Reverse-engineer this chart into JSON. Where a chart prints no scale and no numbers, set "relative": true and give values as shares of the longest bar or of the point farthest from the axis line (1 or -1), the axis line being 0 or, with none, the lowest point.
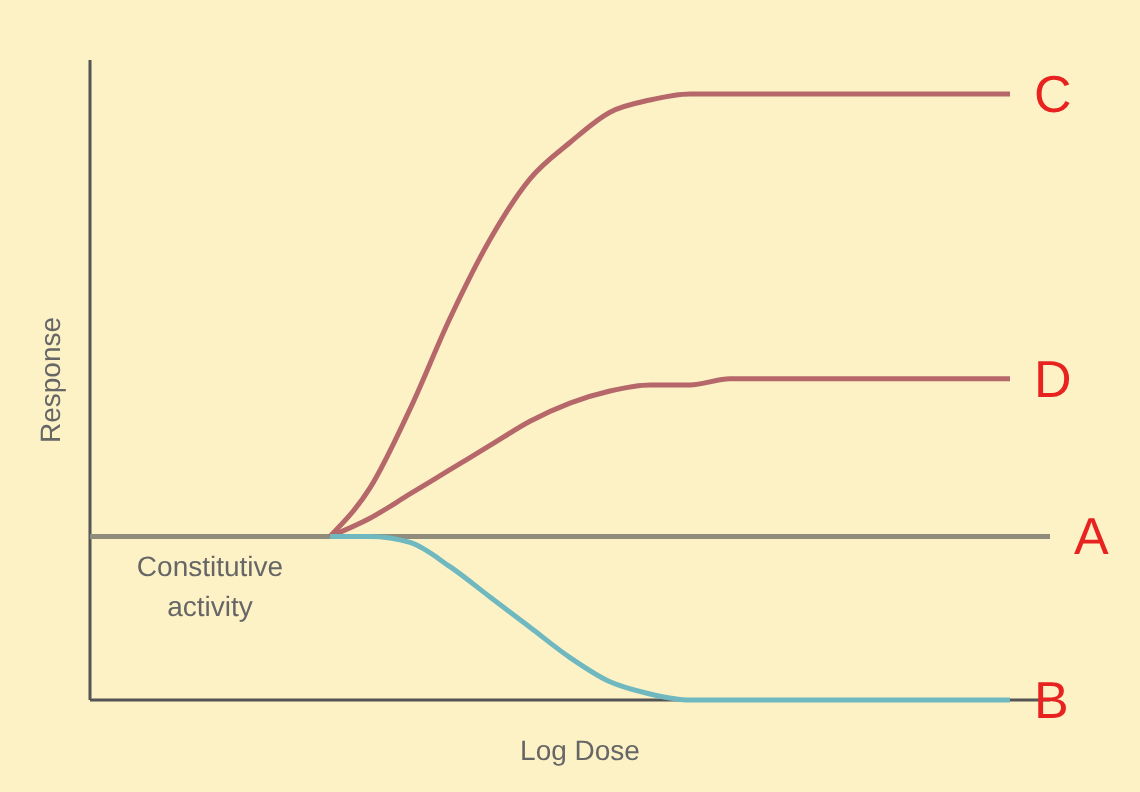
{
  "chart_data": {
    "type": "line",
    "relative": true,
    "xlabel": "Log Dose",
    "ylabel": "Response",
    "annotations": [
      "Constitutive activity"
    ],
    "categories": [
      null,
      null,
      null,
      null,
      null,
      null,
      null,
      null,
      null,
      null,
      null,
      null,
      null,
      null,
      null,
      null,
      null,
      null,
      null,
      null,
      null,
      null,
      null,
      null,
      null
    ],
    "line_style": "solid",
    "series": [
      {
        "name": "A",
        "color": "#8f8c7c",
        "values": [
          0.27,
          0.27,
          0.27,
          0.27,
          0.27,
          0.27,
          0.27,
          0.27,
          0.27,
          0.27,
          0.27,
          0.27,
          0.27,
          0.27,
          0.27,
          0.27,
          0.27,
          0.27,
          0.27,
          0.27,
          0.27,
          0.27,
          0.27,
          0.27,
          0.27
        ]
      },
      {
        "name": "C",
        "color": "#b5676a",
        "values": [
          null,
          null,
          null,
          null,
          null,
          null,
          0.27,
          0.35,
          0.48,
          0.63,
          0.76,
          0.86,
          0.92,
          0.97,
          0.99,
          1,
          1,
          1,
          1,
          1,
          1,
          1,
          1,
          1,
          null
        ]
      },
      {
        "name": "D",
        "color": "#b5676a",
        "values": [
          null,
          null,
          null,
          null,
          null,
          null,
          0.27,
          0.3,
          0.34,
          0.38,
          0.42,
          0.46,
          0.49,
          0.51,
          0.52,
          0.52,
          0.53,
          0.53,
          0.53,
          0.53,
          0.53,
          0.53,
          0.53,
          0.53,
          null
        ]
      },
      {
        "name": "B",
        "color": "#6fb8c0",
        "values": [
          null,
          null,
          null,
          null,
          null,
          null,
          0.27,
          0.27,
          0.26,
          0.22,
          0.17,
          0.12,
          0.07,
          0.03,
          0.01,
          0,
          0,
          0,
          0,
          0,
          0,
          0,
          0,
          0,
          null
        ]
      }
    ]
  }
}
